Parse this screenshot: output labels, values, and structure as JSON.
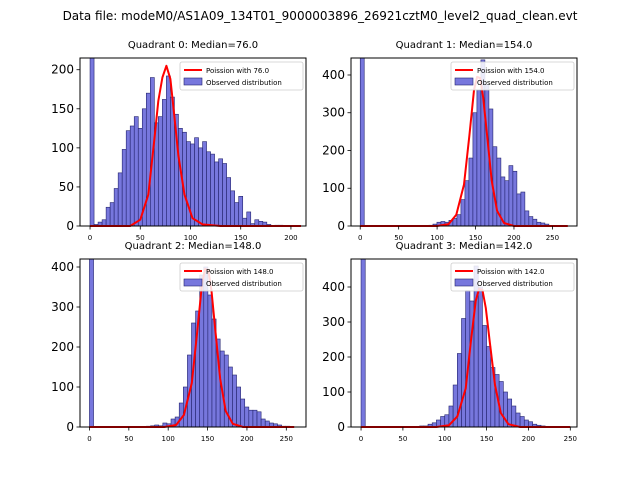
{
  "figure": {
    "suptitle": "Data file: modeM0/AS1A09_134T01_9000003896_26921cztM0_level2_quad_clean.evt",
    "legend": {
      "model_prefix": "Poission with",
      "observed_label": "Observed distribution"
    },
    "colors": {
      "bar_fill": "#7777dd",
      "bar_edge": "#24246e",
      "model_line": "#ff0000",
      "axes": "#000000"
    }
  },
  "chart_data": [
    {
      "type": "bar",
      "title": "Quadrant 0: Median=76.0",
      "legend_model": "Poission with 76.0",
      "median": 76.0,
      "xlim": [
        -10,
        215
      ],
      "ylim": [
        0,
        215
      ],
      "xticks": [
        0,
        50,
        100,
        150,
        200
      ],
      "yticks": [
        0,
        50,
        100,
        150,
        200
      ],
      "bin_width": 4.0,
      "zero_bin_count": 215,
      "bins_start": [
        4,
        8,
        12,
        16,
        20,
        24,
        28,
        32,
        36,
        40,
        44,
        48,
        52,
        56,
        60,
        64,
        68,
        72,
        76,
        80,
        84,
        88,
        92,
        96,
        100,
        104,
        108,
        112,
        116,
        120,
        124,
        128,
        132,
        136,
        140,
        144,
        148,
        152,
        156,
        160,
        164,
        168,
        172,
        176,
        180,
        184,
        188,
        192,
        196,
        200,
        204
      ],
      "counts": [
        2,
        5,
        8,
        24,
        30,
        48,
        68,
        98,
        122,
        128,
        140,
        125,
        150,
        170,
        190,
        132,
        140,
        162,
        192,
        165,
        143,
        125,
        120,
        108,
        105,
        113,
        100,
        108,
        95,
        92,
        82,
        86,
        80,
        62,
        45,
        30,
        38,
        10,
        18,
        3,
        8,
        6,
        5,
        2,
        0,
        1,
        1,
        0,
        0,
        0,
        0
      ],
      "model": {
        "x": [
          0,
          40,
          50,
          58,
          64,
          68,
          72,
          76,
          80,
          84,
          88,
          94,
          102,
          112,
          130,
          210
        ],
        "y": [
          0,
          0,
          8,
          40,
          110,
          160,
          190,
          205,
          188,
          140,
          90,
          40,
          10,
          2,
          0,
          0
        ]
      }
    },
    {
      "type": "bar",
      "title": "Quadrant 1: Median=154.0",
      "legend_model": "Poission with 154.0",
      "median": 154.0,
      "xlim": [
        -12,
        282
      ],
      "ylim": [
        0,
        445
      ],
      "xticks": [
        0,
        50,
        100,
        150,
        200,
        250
      ],
      "yticks": [
        0,
        100,
        200,
        300,
        400
      ],
      "bin_width": 5.2,
      "zero_bin_count": 445,
      "bins_start": [
        89.4,
        94.6,
        99.8,
        105,
        110.2,
        115.4,
        120.6,
        125.8,
        131,
        136.2,
        141.4,
        146.6,
        151.8,
        157,
        162.2,
        167.4,
        172.6,
        177.8,
        183,
        188.2,
        193.4,
        198.6,
        203.8,
        209,
        214.2,
        219.4,
        224.6,
        229.8,
        235,
        240.2
      ],
      "counts": [
        2,
        5,
        10,
        12,
        10,
        15,
        20,
        30,
        70,
        120,
        180,
        300,
        360,
        440,
        375,
        310,
        210,
        180,
        130,
        120,
        160,
        145,
        85,
        90,
        40,
        25,
        18,
        10,
        8,
        5
      ],
      "model": {
        "x": [
          0,
          100,
          115,
          125,
          135,
          142,
          148,
          152,
          156,
          160,
          165,
          171,
          178,
          187,
          200,
          270
        ],
        "y": [
          0,
          0,
          5,
          30,
          110,
          240,
          360,
          395,
          392,
          340,
          240,
          120,
          40,
          8,
          0,
          0
        ]
      }
    },
    {
      "type": "bar",
      "title": "Quadrant 2: Median=148.0",
      "legend_model": "Poission with 148.0",
      "median": 148.0,
      "xlim": [
        -12,
        275
      ],
      "ylim": [
        0,
        420
      ],
      "xticks": [
        0,
        50,
        100,
        150,
        200,
        250
      ],
      "yticks": [
        0,
        100,
        200,
        300,
        400
      ],
      "bin_width": 5.2,
      "zero_bin_count": 420,
      "bins_start": [
        72.4,
        77.6,
        82.8,
        88,
        93.2,
        98.4,
        103.6,
        108.8,
        114,
        119.2,
        124.4,
        129.6,
        134.8,
        140,
        145.2,
        150.4,
        155.6,
        160.8,
        166,
        171.2,
        176.4,
        181.6,
        186.8,
        192,
        197.2,
        202.4,
        207.6,
        212.8,
        218,
        223.2,
        228.4,
        233.6,
        238.8,
        244,
        249.2
      ],
      "counts": [
        2,
        3,
        5,
        3,
        10,
        8,
        20,
        25,
        60,
        100,
        180,
        260,
        290,
        380,
        400,
        330,
        270,
        220,
        190,
        180,
        150,
        130,
        100,
        70,
        50,
        42,
        42,
        38,
        20,
        15,
        10,
        8,
        5,
        2,
        2
      ],
      "model": {
        "x": [
          0,
          95,
          110,
          120,
          130,
          137,
          143,
          147,
          151,
          155,
          160,
          166,
          173,
          182,
          195,
          260
        ],
        "y": [
          0,
          0,
          5,
          30,
          110,
          240,
          360,
          395,
          392,
          340,
          240,
          120,
          40,
          8,
          0,
          0
        ]
      }
    },
    {
      "type": "bar",
      "title": "Quadrant 3: Median=142.0",
      "legend_model": "Poission with 142.0",
      "median": 142.0,
      "xlim": [
        -12,
        258
      ],
      "ylim": [
        0,
        480
      ],
      "xticks": [
        0,
        50,
        100,
        150,
        200,
        250
      ],
      "yticks": [
        0,
        100,
        200,
        300,
        400
      ],
      "bin_width": 5.0,
      "zero_bin_count": 480,
      "bins_start": [
        65,
        70,
        75,
        80,
        85,
        90,
        95,
        100,
        105,
        110,
        115,
        120,
        125,
        130,
        135,
        140,
        145,
        150,
        155,
        160,
        165,
        170,
        175,
        180,
        185,
        190,
        195,
        200,
        205,
        210,
        215,
        220,
        225
      ],
      "counts": [
        2,
        3,
        3,
        8,
        12,
        20,
        30,
        35,
        60,
        120,
        210,
        310,
        390,
        360,
        460,
        400,
        290,
        230,
        170,
        150,
        130,
        100,
        80,
        60,
        40,
        30,
        20,
        15,
        8,
        5,
        3,
        2,
        1
      ],
      "model": {
        "x": [
          0,
          90,
          105,
          115,
          125,
          131,
          137,
          141,
          145,
          149,
          154,
          160,
          167,
          176,
          190,
          250
        ],
        "y": [
          0,
          0,
          5,
          30,
          110,
          240,
          360,
          395,
          392,
          340,
          240,
          120,
          40,
          8,
          0,
          0
        ]
      }
    }
  ]
}
